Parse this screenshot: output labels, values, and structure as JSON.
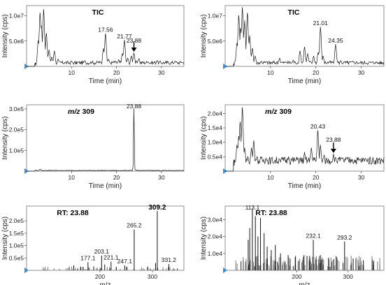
{
  "chart_data": [
    {
      "id": "p1",
      "type": "line",
      "title": "TIC",
      "xlabel": "Time (min)",
      "ylabel": "Intensity (cps)",
      "xlim": [
        0,
        35
      ],
      "ylim": [
        0,
        12000000
      ],
      "xticks": [
        {
          "v": 10,
          "t": "10"
        },
        {
          "v": 20,
          "t": "20"
        },
        {
          "v": 30,
          "t": "30"
        }
      ],
      "yticks": [
        {
          "v": 5000000,
          "t": "5.0e6"
        },
        {
          "v": 10000000,
          "t": "1.0e7"
        }
      ],
      "peaks": [
        [
          0.5,
          0
        ],
        [
          2.0,
          200000
        ],
        [
          2.6,
          5000000
        ],
        [
          3.0,
          10500000
        ],
        [
          3.3,
          8000000
        ],
        [
          3.8,
          11200000
        ],
        [
          4.4,
          6500000
        ],
        [
          5.0,
          3200000
        ],
        [
          5.6,
          1800000
        ],
        [
          6.2,
          3000000
        ],
        [
          7.0,
          1400000
        ],
        [
          8.5,
          700000
        ],
        [
          10.0,
          1000000
        ],
        [
          11.0,
          500000
        ],
        [
          13.0,
          1100000
        ],
        [
          14.5,
          700000
        ],
        [
          16.0,
          900000
        ],
        [
          17.1,
          3500000
        ],
        [
          17.56,
          6400000
        ],
        [
          18.2,
          1400000
        ],
        [
          19.5,
          1000000
        ],
        [
          20.5,
          1300000
        ],
        [
          21.3,
          2500000
        ],
        [
          21.77,
          5100000
        ],
        [
          22.5,
          1600000
        ],
        [
          23.3,
          2000000
        ],
        [
          23.88,
          2600000
        ],
        [
          25.0,
          1500000
        ],
        [
          27.0,
          900000
        ],
        [
          29.0,
          1100000
        ],
        [
          31.0,
          700000
        ],
        [
          33.0,
          1000000
        ],
        [
          34.5,
          800000
        ]
      ],
      "labels": [
        {
          "x": 17.56,
          "y": 6400000,
          "t": "17.56"
        },
        {
          "x": 21.77,
          "y": 5100000,
          "t": "21.77"
        },
        {
          "x": 23.88,
          "y": 2600000,
          "t": "23.88",
          "off": 12
        }
      ],
      "arrow": {
        "x": 23.88,
        "y": 2600000
      }
    },
    {
      "id": "p2",
      "type": "line",
      "title": "TIC",
      "xlabel": "Time (min)",
      "ylabel": "Intensity (cps)",
      "xlim": [
        0,
        35
      ],
      "ylim": [
        0,
        12000000
      ],
      "xticks": [
        {
          "v": 10,
          "t": "10"
        },
        {
          "v": 20,
          "t": "20"
        },
        {
          "v": 30,
          "t": "30"
        }
      ],
      "yticks": [
        {
          "v": 5000000,
          "t": "5.0e6"
        },
        {
          "v": 10000000,
          "t": "1.0e7"
        }
      ],
      "peaks": [
        [
          0.5,
          0
        ],
        [
          2.0,
          200000
        ],
        [
          2.6,
          4500000
        ],
        [
          3.0,
          10000000
        ],
        [
          3.4,
          7500000
        ],
        [
          3.8,
          11600000
        ],
        [
          4.3,
          9000000
        ],
        [
          4.9,
          10500000
        ],
        [
          5.4,
          6000000
        ],
        [
          6.0,
          3500000
        ],
        [
          6.6,
          2000000
        ],
        [
          8.0,
          1000000
        ],
        [
          10.0,
          500000
        ],
        [
          12.0,
          1600000
        ],
        [
          13.5,
          800000
        ],
        [
          15.0,
          1200000
        ],
        [
          16.5,
          3000000
        ],
        [
          17.5,
          3800000
        ],
        [
          18.2,
          2500000
        ],
        [
          19.5,
          2000000
        ],
        [
          20.5,
          2700000
        ],
        [
          21.01,
          7700000
        ],
        [
          21.6,
          2000000
        ],
        [
          23.0,
          1000000
        ],
        [
          24.35,
          4300000
        ],
        [
          25.5,
          1100000
        ],
        [
          27.0,
          700000
        ],
        [
          29.0,
          900000
        ],
        [
          31.0,
          600000
        ],
        [
          33.0,
          700000
        ],
        [
          34.5,
          500000
        ]
      ],
      "labels": [
        {
          "x": 21.01,
          "y": 7700000,
          "t": "21.01"
        },
        {
          "x": 24.35,
          "y": 4300000,
          "t": "24.35"
        }
      ]
    },
    {
      "id": "p3",
      "type": "line",
      "title": "m/z 309",
      "xlabel": "Time (min)",
      "ylabel": "Intensity (cps)",
      "xlim": [
        0,
        35
      ],
      "ylim": [
        0,
        320000
      ],
      "xticks": [
        {
          "v": 10,
          "t": "10"
        },
        {
          "v": 20,
          "t": "20"
        },
        {
          "v": 30,
          "t": "30"
        }
      ],
      "yticks": [
        {
          "v": 100000,
          "t": "1.0e5"
        },
        {
          "v": 200000,
          "t": "2.0e5"
        },
        {
          "v": 300000,
          "t": "3.0e5"
        }
      ],
      "peaks": [
        [
          0.5,
          0
        ],
        [
          2.0,
          4000
        ],
        [
          3.0,
          9000
        ],
        [
          5.0,
          3000
        ],
        [
          10.0,
          2500
        ],
        [
          15.0,
          3000
        ],
        [
          20.0,
          4000
        ],
        [
          23.1,
          5000
        ],
        [
          23.88,
          300000
        ],
        [
          24.5,
          4000
        ],
        [
          28.0,
          2500
        ],
        [
          33.0,
          2000
        ]
      ],
      "labels": [
        {
          "x": 23.88,
          "y": 300000,
          "t": "23.88"
        }
      ]
    },
    {
      "id": "p4",
      "type": "line",
      "title": "m/z 309",
      "xlabel": "Time (min)",
      "ylabel": "Intensity (cps)",
      "xlim": [
        0,
        35
      ],
      "ylim": [
        0,
        23000
      ],
      "xticks": [
        {
          "v": 10,
          "t": "10"
        },
        {
          "v": 20,
          "t": "20"
        },
        {
          "v": 30,
          "t": "30"
        }
      ],
      "yticks": [
        {
          "v": 5000,
          "t": "0.5e4"
        },
        {
          "v": 10000,
          "t": "1.0e4"
        },
        {
          "v": 15000,
          "t": "1.5e4"
        },
        {
          "v": 20000,
          "t": "2.0e4"
        }
      ],
      "peaks": [
        [
          0.5,
          0
        ],
        [
          2.0,
          2000
        ],
        [
          2.6,
          9000
        ],
        [
          3.0,
          12000
        ],
        [
          3.3,
          17000
        ],
        [
          3.8,
          22000
        ],
        [
          4.3,
          8000
        ],
        [
          5.0,
          5000
        ],
        [
          5.8,
          8000
        ],
        [
          6.3,
          10500
        ],
        [
          7.0,
          5000
        ],
        [
          9.0,
          4500
        ],
        [
          12.0,
          4200
        ],
        [
          14.0,
          5000
        ],
        [
          16.0,
          4600
        ],
        [
          17.5,
          6500
        ],
        [
          19.0,
          8000
        ],
        [
          20.43,
          14000
        ],
        [
          21.0,
          9000
        ],
        [
          21.8,
          5500
        ],
        [
          23.88,
          5800
        ],
        [
          25.0,
          4300
        ],
        [
          28.0,
          4100
        ],
        [
          31.0,
          4300
        ],
        [
          34.5,
          4000
        ]
      ],
      "labels": [
        {
          "x": 20.43,
          "y": 14000,
          "t": "20.43"
        },
        {
          "x": 23.88,
          "y": 5800,
          "t": "23.88",
          "off": 15
        }
      ],
      "arrow": {
        "x": 23.88,
        "y": 5800
      }
    },
    {
      "id": "p5",
      "type": "bar",
      "title": "RT: 23.88",
      "xlabel": "m/z",
      "ylabel": "Intensity (cps)",
      "xlim": [
        60,
        360
      ],
      "ylim": [
        0,
        260000
      ],
      "xticks": [
        {
          "v": 200,
          "t": "200"
        },
        {
          "v": 300,
          "t": "300"
        }
      ],
      "yticks": [
        {
          "v": 50000,
          "t": "0.5e5"
        },
        {
          "v": 100000,
          "t": "1.0e5"
        },
        {
          "v": 150000,
          "t": "1.5e5"
        },
        {
          "v": 200000,
          "t": "2.0e5"
        }
      ],
      "sticks": [
        [
          177.1,
          33000
        ],
        [
          203.1,
          60000
        ],
        [
          221.1,
          35000
        ],
        [
          247.1,
          20000
        ],
        [
          265.2,
          165000
        ],
        [
          309.2,
          240000
        ],
        [
          331.2,
          25000
        ],
        [
          150.0,
          20000
        ],
        [
          163.0,
          15000
        ],
        [
          188.0,
          16000
        ],
        [
          209.0,
          24000
        ],
        [
          231.0,
          13000
        ],
        [
          291.0,
          15000
        ],
        [
          306.0,
          30000
        ]
      ],
      "labels": [
        {
          "x": 177.1,
          "y": 33000,
          "t": "177.1"
        },
        {
          "x": 203.1,
          "y": 60000,
          "t": "203.1"
        },
        {
          "x": 221.1,
          "y": 35000,
          "t": "221.1"
        },
        {
          "x": 247.1,
          "y": 20000,
          "t": "247.1"
        },
        {
          "x": 265.2,
          "y": 165000,
          "t": "265.2"
        },
        {
          "x": 309.2,
          "y": 240000,
          "t": "309.2",
          "bold": true
        },
        {
          "x": 331.2,
          "y": 25000,
          "t": "331.2"
        }
      ]
    },
    {
      "id": "p6",
      "type": "bar",
      "title": "RT: 23.88",
      "xlabel": "m/z",
      "ylabel": "Intensity (cps)",
      "xlim": [
        60,
        370
      ],
      "ylim": [
        0,
        38000
      ],
      "xticks": [
        {
          "v": 200,
          "t": "200"
        },
        {
          "v": 300,
          "t": "300"
        }
      ],
      "yticks": [
        {
          "v": 10000,
          "t": "1.0e4"
        },
        {
          "v": 20000,
          "t": "2.0e4"
        },
        {
          "v": 30000,
          "t": "3.0e4"
        }
      ],
      "sticks": [
        [
          113.1,
          36500
        ],
        [
          232.1,
          18000
        ],
        [
          293.2,
          17000
        ],
        [
          105.0,
          18000
        ],
        [
          108.0,
          25000
        ],
        [
          119.0,
          32000
        ],
        [
          124.0,
          20000
        ],
        [
          129.0,
          31000
        ],
        [
          136.0,
          22000
        ],
        [
          142.0,
          14000
        ],
        [
          150.0,
          12000
        ],
        [
          158.0,
          15000
        ],
        [
          168.0,
          10000
        ],
        [
          183.0,
          9000
        ],
        [
          197.0,
          8000
        ],
        [
          214.0,
          9000
        ],
        [
          225.0,
          8500
        ],
        [
          246.0,
          9000
        ],
        [
          262.0,
          7500
        ],
        [
          278.0,
          8000
        ],
        [
          310.0,
          7000
        ],
        [
          330.0,
          6000
        ],
        [
          350.0,
          5500
        ]
      ],
      "labels": [
        {
          "x": 113.1,
          "y": 36500,
          "t": "113.1"
        },
        {
          "x": 232.1,
          "y": 18000,
          "t": "232.1"
        },
        {
          "x": 293.2,
          "y": 17000,
          "t": "293.2"
        }
      ]
    }
  ]
}
